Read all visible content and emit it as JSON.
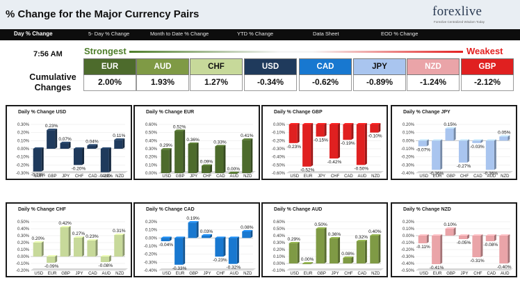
{
  "header": {
    "title": "% Change for the Major Currency Pairs",
    "logo_text": "forexlive",
    "logo_tagline": "Forexlive Centralized Wisdom Today"
  },
  "nav": [
    {
      "label": "Day % Change",
      "active": true
    },
    {
      "label": "5- Day % Change",
      "active": false
    },
    {
      "label": "Month to Date % Change",
      "active": false
    },
    {
      "label": "YTD % Change",
      "active": false
    },
    {
      "label": "Data Sheet",
      "active": false
    },
    {
      "label": "EOD % Change",
      "active": false
    }
  ],
  "summary": {
    "time": "7:56 AM",
    "strongest_label": "Strongest",
    "weakest_label": "Weakest",
    "cumulative_label_1": "Cumulative",
    "cumulative_label_2": "Changes",
    "pairs": [
      {
        "code": "EUR",
        "value": "2.00%",
        "color": "#4d6b2c",
        "text_color": "#ffffff"
      },
      {
        "code": "AUD",
        "value": "1.93%",
        "color": "#7f9a45",
        "text_color": "#ffffff"
      },
      {
        "code": "CHF",
        "value": "1.27%",
        "color": "#c7d99a",
        "text_color": "#111111"
      },
      {
        "code": "USD",
        "value": "-0.34%",
        "color": "#1f3a5c",
        "text_color": "#ffffff"
      },
      {
        "code": "CAD",
        "value": "-0.62%",
        "color": "#1878d0",
        "text_color": "#ffffff"
      },
      {
        "code": "JPY",
        "value": "-0.89%",
        "color": "#a9c5ef",
        "text_color": "#111111"
      },
      {
        "code": "NZD",
        "value": "-1.24%",
        "color": "#eaa4a8",
        "text_color": "#ffffff"
      },
      {
        "code": "GBP",
        "value": "-2.12%",
        "color": "#e02020",
        "text_color": "#ffffff"
      }
    ]
  },
  "chart_data": [
    {
      "type": "bar",
      "title": "Daily % Change USD",
      "categories": [
        "EUR",
        "GBP",
        "JPY",
        "CHF",
        "CAD",
        "AUD",
        "NZD"
      ],
      "values": [
        -0.28,
        0.23,
        0.07,
        -0.2,
        0.04,
        -0.29,
        0.11
      ],
      "labels": [
        "-0.28%",
        "0.23%",
        "0.07%",
        "-0.20%",
        "0.04%",
        "-0.29%",
        "0.11%"
      ],
      "ylim": [
        -0.3,
        0.3
      ],
      "yticks": [
        "0.30%",
        "0.20%",
        "0.10%",
        "0.00%",
        "-0.10%",
        "-0.20%",
        "-0.30%"
      ],
      "color": "#1f3a5c"
    },
    {
      "type": "bar",
      "title": "Daily % Change EUR",
      "categories": [
        "USD",
        "GBP",
        "JPY",
        "CHF",
        "CAD",
        "AUD",
        "NZD"
      ],
      "values": [
        0.29,
        0.52,
        0.36,
        0.09,
        0.33,
        0.0,
        0.41
      ],
      "labels": [
        "0.29%",
        "0.52%",
        "0.36%",
        "0.09%",
        "0.33%",
        "0.00%",
        "0.41%"
      ],
      "ylim": [
        0.0,
        0.6
      ],
      "yticks": [
        "0.60%",
        "0.50%",
        "0.40%",
        "0.30%",
        "0.20%",
        "0.10%",
        "0.00%"
      ],
      "color": "#4d6b2c"
    },
    {
      "type": "bar",
      "title": "Daily % Change GBP",
      "categories": [
        "USD",
        "EUR",
        "JPY",
        "CHF",
        "CAD",
        "AUD",
        "NZD"
      ],
      "values": [
        -0.23,
        -0.52,
        -0.15,
        -0.42,
        -0.19,
        -0.5,
        -0.1
      ],
      "labels": [
        "-0.23%",
        "-0.52%",
        "-0.15%",
        "-0.42%",
        "-0.19%",
        "-0.50%",
        "-0.10%"
      ],
      "ylim": [
        -0.6,
        0.0
      ],
      "yticks": [
        "0.00%",
        "-0.10%",
        "-0.20%",
        "-0.30%",
        "-0.40%",
        "-0.50%",
        "-0.60%"
      ],
      "color": "#e02020"
    },
    {
      "type": "bar",
      "title": "Daily % Change JPY",
      "categories": [
        "USD",
        "EUR",
        "GBP",
        "CHF",
        "CAD",
        "AUD",
        "NZD"
      ],
      "values": [
        -0.07,
        -0.36,
        0.15,
        -0.27,
        -0.03,
        -0.36,
        0.05
      ],
      "labels": [
        "-0.07%",
        "-0.36%",
        "0.15%",
        "-0.27%",
        "-0.03%",
        "-0.36%",
        "0.05%"
      ],
      "ylim": [
        -0.4,
        0.2
      ],
      "yticks": [
        "0.20%",
        "0.10%",
        "0.00%",
        "-0.10%",
        "-0.20%",
        "-0.30%",
        "-0.40%"
      ],
      "color": "#a9c5ef"
    },
    {
      "type": "bar",
      "title": "Daily % Change CHF",
      "categories": [
        "USD",
        "EUR",
        "GBP",
        "JPY",
        "CAD",
        "AUD",
        "NZD"
      ],
      "values": [
        0.2,
        -0.09,
        0.42,
        0.27,
        0.23,
        -0.08,
        0.31
      ],
      "labels": [
        "0.20%",
        "-0.09%",
        "0.42%",
        "0.27%",
        "0.23%",
        "-0.08%",
        "0.31%"
      ],
      "ylim": [
        -0.2,
        0.5
      ],
      "yticks": [
        "0.50%",
        "0.40%",
        "0.30%",
        "0.20%",
        "0.10%",
        "0.00%",
        "-0.10%",
        "-0.20%"
      ],
      "color": "#c7d99a"
    },
    {
      "type": "bar",
      "title": "Daily % Change CAD",
      "categories": [
        "USD",
        "EUR",
        "GBP",
        "JPY",
        "CHF",
        "AUD",
        "NZD"
      ],
      "values": [
        -0.04,
        -0.33,
        0.19,
        0.03,
        -0.23,
        -0.32,
        0.08
      ],
      "labels": [
        "-0.04%",
        "-0.33%",
        "0.19%",
        "0.03%",
        "-0.23%",
        "-0.32%",
        "0.08%"
      ],
      "ylim": [
        -0.4,
        0.2
      ],
      "yticks": [
        "0.20%",
        "0.10%",
        "0.00%",
        "-0.10%",
        "-0.20%",
        "-0.30%",
        "-0.40%"
      ],
      "color": "#1878d0"
    },
    {
      "type": "bar",
      "title": "Daily % Change AUD",
      "categories": [
        "USD",
        "EUR",
        "GBP",
        "JPY",
        "CHF",
        "CAD",
        "NZD"
      ],
      "values": [
        0.29,
        0.0,
        0.5,
        0.36,
        0.08,
        0.32,
        0.4
      ],
      "labels": [
        "0.29%",
        "0.00%",
        "0.50%",
        "0.36%",
        "0.08%",
        "0.32%",
        "0.40%"
      ],
      "ylim": [
        -0.1,
        0.6
      ],
      "yticks": [
        "0.60%",
        "0.50%",
        "0.40%",
        "0.30%",
        "0.20%",
        "0.10%",
        "0.00%",
        "-0.10%"
      ],
      "color": "#7f9a45"
    },
    {
      "type": "bar",
      "title": "Daily % Change NZD",
      "categories": [
        "USD",
        "EUR",
        "GBP",
        "JPY",
        "CHF",
        "CAD",
        "AUD"
      ],
      "values": [
        -0.11,
        -0.41,
        0.1,
        -0.05,
        -0.31,
        -0.08,
        -0.4
      ],
      "labels": [
        "-0.11%",
        "-0.41%",
        "0.10%",
        "-0.05%",
        "-0.31%",
        "-0.08%",
        "-0.40%"
      ],
      "ylim": [
        -0.5,
        0.2
      ],
      "yticks": [
        "0.20%",
        "0.10%",
        "0.00%",
        "-0.10%",
        "-0.20%",
        "-0.30%",
        "-0.40%",
        "-0.50%"
      ],
      "color": "#eaa4a8"
    }
  ]
}
